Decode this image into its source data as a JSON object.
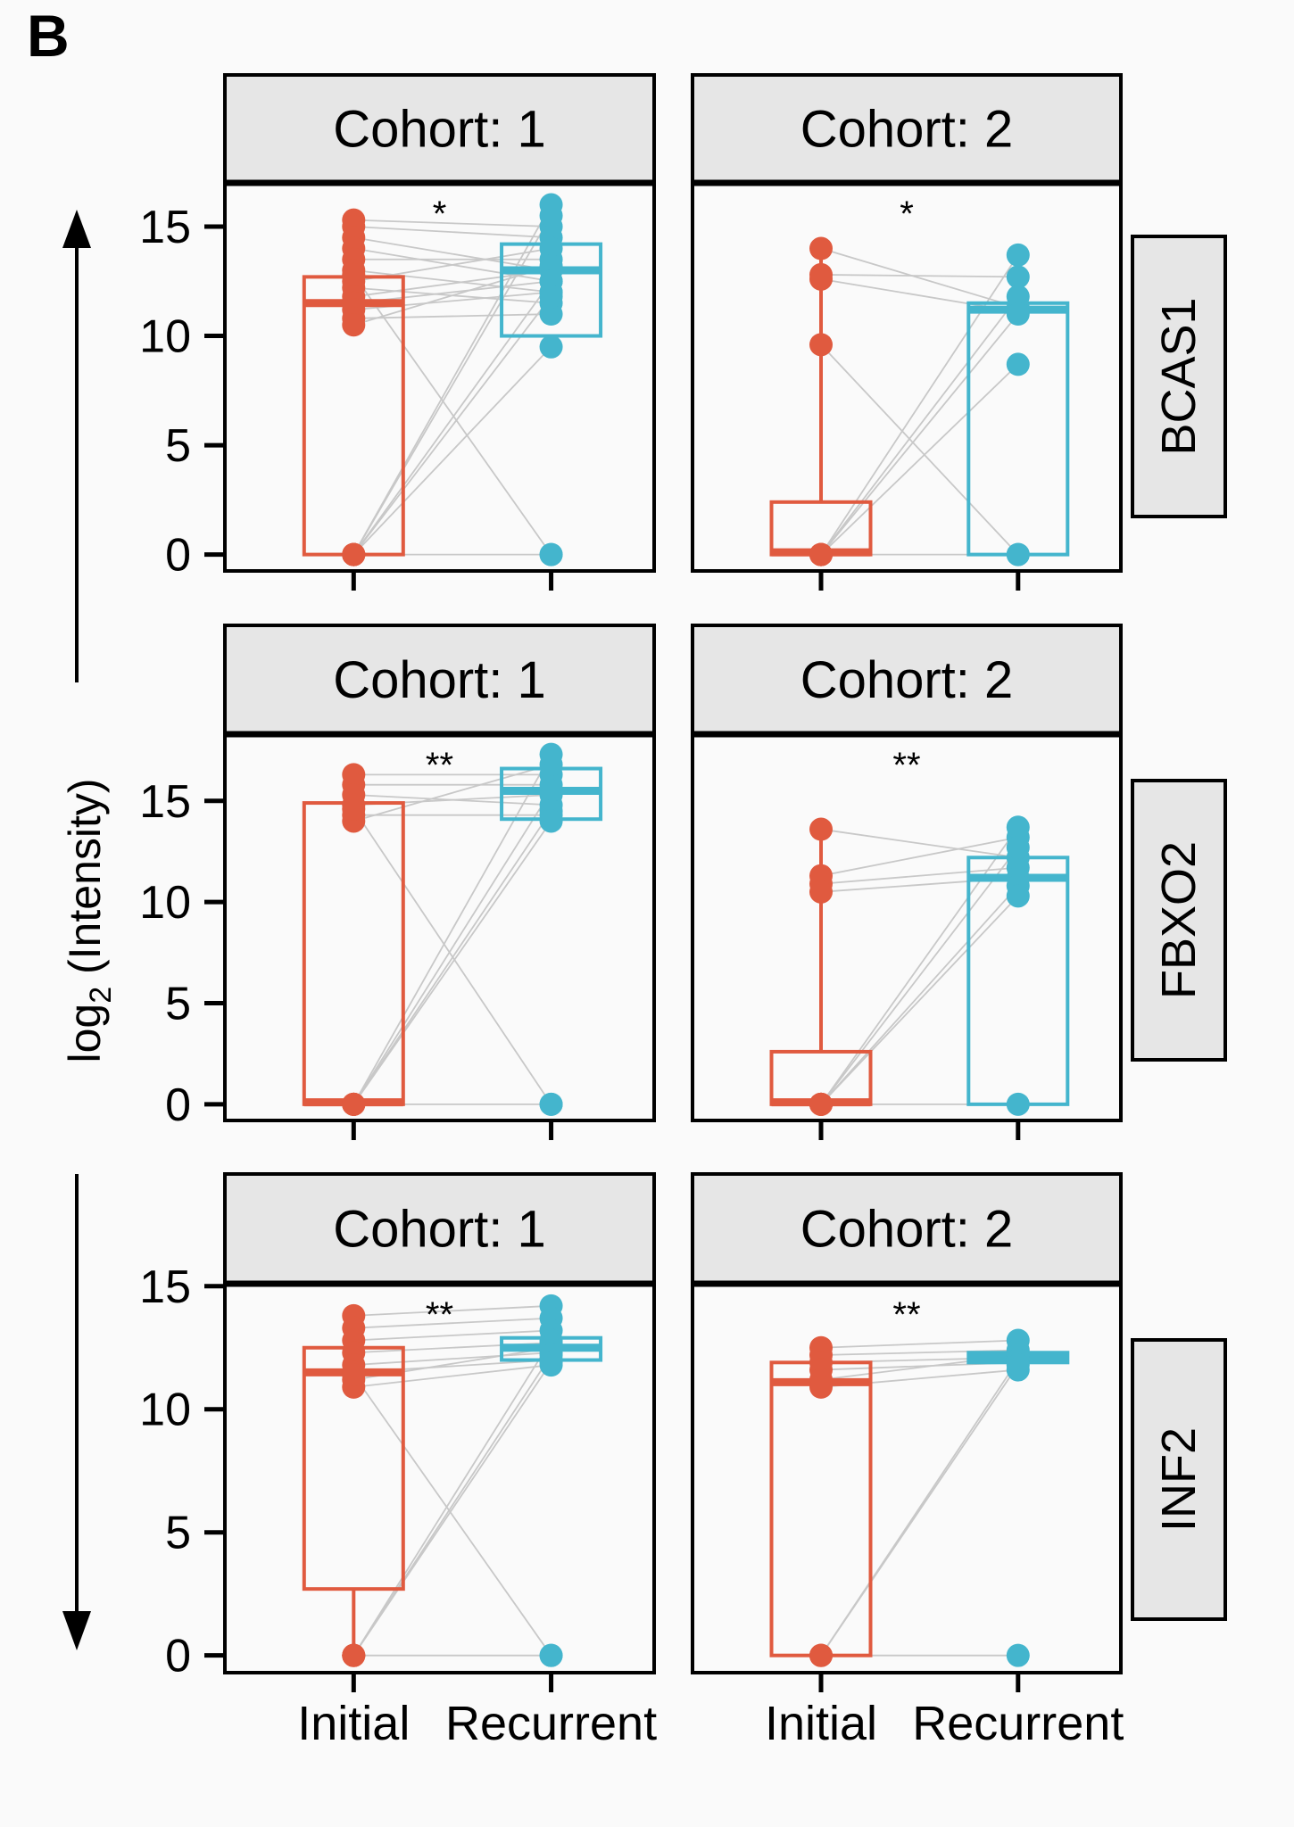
{
  "figure_label": "B",
  "chart_data": {
    "type": "box",
    "ylabel_main": "log",
    "ylabel_sub": "2",
    "ylabel_rest": " (Intensity)",
    "categories": [
      "Initial",
      "Recurrent"
    ],
    "colors": {
      "Initial": "#e05a3f",
      "Recurrent": "#44b5cd",
      "pair_line": "#c8c8c8",
      "strip": "#e6e6e6"
    },
    "column_strips": [
      "Cohort: 1",
      "Cohort: 2"
    ],
    "y_ticks": [
      0,
      5,
      10,
      15
    ],
    "grid": false,
    "rows": [
      {
        "gene": "BCAS1",
        "ylim": [
          -0.75,
          17.0
        ],
        "panels": [
          {
            "cohort": "Cohort: 1",
            "significance": "*",
            "box": {
              "Initial": {
                "min": 0,
                "q1": 0,
                "median": 11.5,
                "q3": 12.7,
                "max": 15.3
              },
              "Recurrent": {
                "min": 9.5,
                "q1": 10,
                "median": 13,
                "q3": 14.2,
                "max": 16
              }
            },
            "pairs": [
              [
                15.3,
                15
              ],
              [
                15,
                14.5
              ],
              [
                14.5,
                13
              ],
              [
                14,
                12.5
              ],
              [
                13.5,
                13.5
              ],
              [
                13,
                12
              ],
              [
                12.5,
                14
              ],
              [
                12.2,
                11.5
              ],
              [
                11.8,
                13
              ],
              [
                11.5,
                12.5
              ],
              [
                11.2,
                12
              ],
              [
                10.8,
                11
              ],
              [
                10.5,
                13.2
              ],
              [
                12.8,
                0
              ],
              [
                0,
                16
              ],
              [
                0,
                15.5
              ],
              [
                0,
                12.5
              ],
              [
                0,
                11.8
              ],
              [
                0,
                9.5
              ],
              [
                0,
                0
              ]
            ]
          },
          {
            "cohort": "Cohort: 2",
            "significance": "*",
            "box": {
              "Initial": {
                "min": 0,
                "q1": 0,
                "median": 0.1,
                "q3": 2.4,
                "max": 14
              },
              "Recurrent": {
                "min": 0,
                "q1": 0,
                "median": 11.2,
                "q3": 11.5,
                "max": 13.7
              }
            },
            "pairs": [
              [
                14,
                11.3
              ],
              [
                12.8,
                12.7
              ],
              [
                12.6,
                11.1
              ],
              [
                9.6,
                0
              ],
              [
                0,
                13.7
              ],
              [
                0,
                11.8
              ],
              [
                0,
                11
              ],
              [
                0,
                8.7
              ],
              [
                0,
                0
              ]
            ]
          }
        ]
      },
      {
        "gene": "FBXO2",
        "ylim": [
          -0.8,
          18.3
        ],
        "panels": [
          {
            "cohort": "Cohort: 1",
            "significance": "**",
            "box": {
              "Initial": {
                "min": 0,
                "q1": 0,
                "median": 0.1,
                "q3": 14.9,
                "max": 16.3
              },
              "Recurrent": {
                "min": 14,
                "q1": 14.1,
                "median": 15.5,
                "q3": 16.6,
                "max": 17.3
              }
            },
            "pairs": [
              [
                16.3,
                16.3
              ],
              [
                15.8,
                15.8
              ],
              [
                15.3,
                14.8
              ],
              [
                14.8,
                15.3
              ],
              [
                14.3,
                14.3
              ],
              [
                14,
                16.8
              ],
              [
                14.6,
                0
              ],
              [
                0,
                17.3
              ],
              [
                0,
                15.5
              ],
              [
                0,
                14.5
              ],
              [
                0,
                14
              ],
              [
                0,
                0
              ]
            ]
          },
          {
            "cohort": "Cohort: 2",
            "significance": "**",
            "box": {
              "Initial": {
                "min": 0,
                "q1": 0,
                "median": 0.1,
                "q3": 2.6,
                "max": 13.6
              },
              "Recurrent": {
                "min": 0,
                "q1": 0,
                "median": 11.2,
                "q3": 12.2,
                "max": 13.7
              }
            },
            "pairs": [
              [
                13.6,
                12.2
              ],
              [
                11.3,
                13.2
              ],
              [
                10.9,
                11.7
              ],
              [
                10.5,
                11.2
              ],
              [
                0,
                13.7
              ],
              [
                0,
                12.7
              ],
              [
                0,
                10.8
              ],
              [
                0,
                10.3
              ],
              [
                0,
                0
              ]
            ]
          }
        ]
      },
      {
        "gene": "INF2",
        "ylim": [
          -0.7,
          15.1
        ],
        "panels": [
          {
            "cohort": "Cohort: 1",
            "significance": "**",
            "box": {
              "Initial": {
                "min": 0,
                "q1": 2.7,
                "median": 11.5,
                "q3": 12.5,
                "max": 13.8
              },
              "Recurrent": {
                "min": 11.8,
                "q1": 12,
                "median": 12.5,
                "q3": 12.9,
                "max": 14.2
              }
            },
            "pairs": [
              [
                13.8,
                14.2
              ],
              [
                13.3,
                13.7
              ],
              [
                12.8,
                13.2
              ],
              [
                12.3,
                12.7
              ],
              [
                11.8,
                12.3
              ],
              [
                11.5,
                12
              ],
              [
                11.2,
                12.5
              ],
              [
                10.9,
                11.8
              ],
              [
                11.4,
                0
              ],
              [
                0,
                12.8
              ],
              [
                0,
                12.2
              ],
              [
                0,
                11.9
              ],
              [
                0,
                0
              ]
            ]
          },
          {
            "cohort": "Cohort: 2",
            "significance": "**",
            "box": {
              "Initial": {
                "min": 0,
                "q1": 0,
                "median": 11.1,
                "q3": 11.9,
                "max": 12.5
              },
              "Recurrent": {
                "min": 11.6,
                "q1": 11.9,
                "median": 12.1,
                "q3": 12.3,
                "max": 12.8
              }
            },
            "pairs": [
              [
                12.5,
                12.8
              ],
              [
                12.2,
                12.4
              ],
              [
                11.9,
                12.1
              ],
              [
                11.6,
                11.9
              ],
              [
                11.2,
                12.2
              ],
              [
                10.9,
                11.6
              ],
              [
                0,
                12
              ],
              [
                0,
                11.8
              ],
              [
                0,
                0
              ]
            ]
          }
        ]
      }
    ]
  }
}
